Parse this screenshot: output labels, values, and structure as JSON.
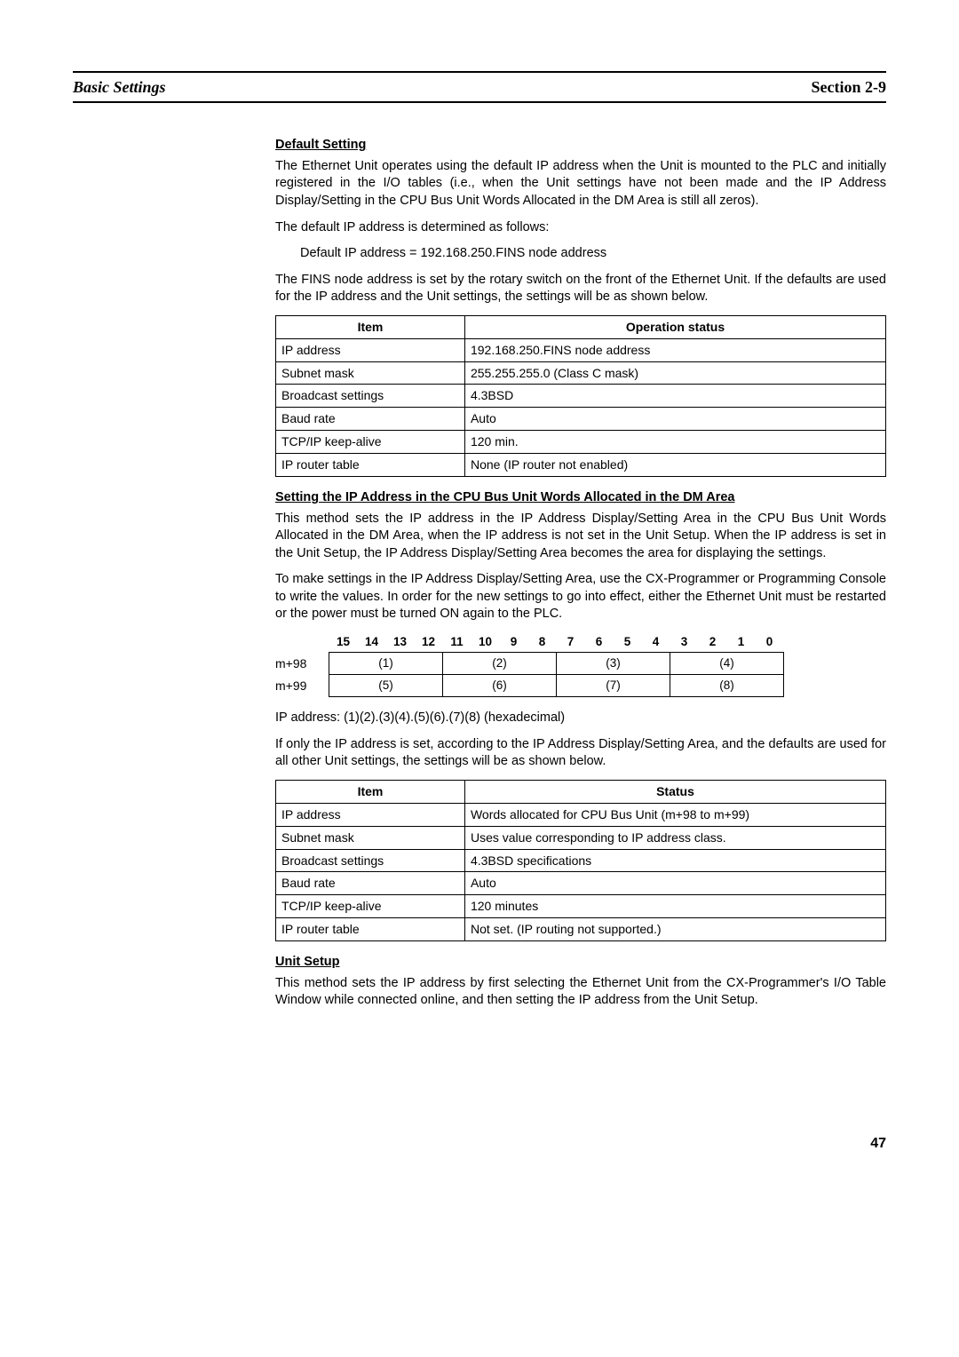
{
  "header": {
    "left": "Basic Settings",
    "right": "Section 2-9"
  },
  "sec1": {
    "head": "Default Setting",
    "p1": "The Ethernet Unit operates using the default IP address when the Unit is mounted to the PLC and initially registered in the I/O tables (i.e., when the Unit settings have not been made and the IP Address Display/Setting in the CPU Bus Unit Words Allocated in the DM Area is still all zeros).",
    "p2": "The default IP address is determined as follows:",
    "p3": "Default IP address = 192.168.250.FINS node address",
    "p4": "The FINS node address is set by the rotary switch on the front of the Ethernet Unit. If the defaults are used for the IP address and the Unit settings, the settings will be as shown below."
  },
  "table1": {
    "headers": [
      "Item",
      "Operation status"
    ],
    "rows": [
      [
        "IP address",
        "192.168.250.FINS node address"
      ],
      [
        "Subnet mask",
        "255.255.255.0 (Class C mask)"
      ],
      [
        "Broadcast settings",
        "4.3BSD"
      ],
      [
        "Baud rate",
        "Auto"
      ],
      [
        "TCP/IP keep-alive",
        "120 min."
      ],
      [
        "IP router table",
        "None (IP router not enabled)"
      ]
    ]
  },
  "sec2": {
    "head": "Setting the IP Address in the CPU Bus Unit Words Allocated in the DM Area",
    "p1": "This method sets the IP address in the IP Address Display/Setting Area in the CPU Bus Unit Words Allocated in the DM Area, when the IP address is not set in the Unit Setup. When the IP address is set in the Unit Setup, the IP Address Display/Setting Area becomes the area for displaying the settings.",
    "p2": "To make settings in the IP Address Display/Setting Area, use the CX-Programmer or Programming Console to write the values. In order for the new settings to go into effect, either the Ethernet Unit must be restarted or the power must be turned ON again to the PLC."
  },
  "bits": {
    "headers": [
      "15",
      "14",
      "13",
      "12",
      "11",
      "10",
      "9",
      "8",
      "7",
      "6",
      "5",
      "4",
      "3",
      "2",
      "1",
      "0"
    ],
    "rows": [
      {
        "label": "m+98",
        "cells": [
          "(1)",
          "(2)",
          "(3)",
          "(4)"
        ]
      },
      {
        "label": "m+99",
        "cells": [
          "(5)",
          "(6)",
          "(7)",
          "(8)"
        ]
      }
    ]
  },
  "sec3": {
    "p1": "IP address: (1)(2).(3)(4).(5)(6).(7)(8) (hexadecimal)",
    "p2": "If only the IP address is set, according to the IP Address Display/Setting Area, and the defaults are used for all other Unit settings, the settings will be as shown below."
  },
  "table2": {
    "headers": [
      "Item",
      "Status"
    ],
    "rows": [
      [
        "IP address",
        "Words allocated for CPU Bus Unit (m+98 to m+99)"
      ],
      [
        "Subnet mask",
        "Uses value corresponding to IP address class."
      ],
      [
        "Broadcast settings",
        "4.3BSD specifications"
      ],
      [
        "Baud rate",
        "Auto"
      ],
      [
        "TCP/IP keep-alive",
        "120 minutes"
      ],
      [
        "IP router table",
        "Not set. (IP routing not supported.)"
      ]
    ]
  },
  "sec4": {
    "head": "Unit Setup",
    "p1": "This method sets the IP address by first selecting the Ethernet Unit from the CX-Programmer's I/O Table Window while connected online, and then setting the IP address from the Unit Setup."
  },
  "pageNumber": "47"
}
